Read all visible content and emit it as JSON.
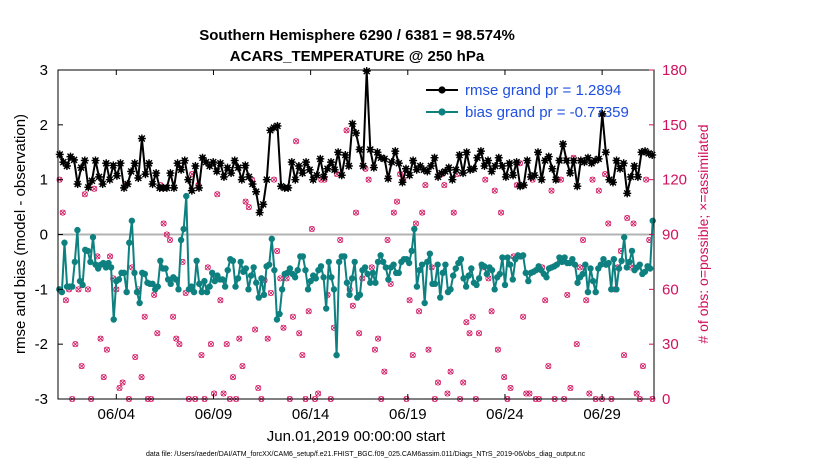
{
  "chart_data": {
    "type": "line",
    "title": "Southern Hemisphere 6290 / 6381 = 98.574%",
    "subtitle": "ACARS_TEMPERATURE @ 250 hPa",
    "xlabel": "Jun.01,2019 00:00:00 start",
    "ylabel": "rmse and bias (model - observation)",
    "ylabel_right": "# of obs: o=possible; ×=assimilated",
    "xlim": [
      0,
      30.67
    ],
    "ylim": [
      -3,
      3
    ],
    "ylim_right": [
      0,
      180
    ],
    "xticks": [
      3,
      8,
      13,
      18,
      23,
      28
    ],
    "xtick_labels": [
      "06/04",
      "06/09",
      "06/14",
      "06/19",
      "06/24",
      "06/29"
    ],
    "yticks": [
      -3,
      -2,
      -1,
      0,
      1,
      2,
      3
    ],
    "yticks_right": [
      0,
      30,
      60,
      90,
      120,
      150,
      180
    ],
    "zero_line": 0,
    "footer": "data file: /Users/raeder/DAI/ATM_forcXX/CAM6_setup/f.e21.FHIST_BGC.f09_025.CAM6assim.011/Diags_NTrS_2019-06/obs_diag_output.nc",
    "legend_location": "top-right",
    "series": [
      {
        "name": "rmse grand pr = 1.2894",
        "color": "#000000",
        "marker": "star",
        "values": [
          1.46,
          1.32,
          1.25,
          1.42,
          1.36,
          0.92,
          1.22,
          1.35,
          0.86,
          0.98,
          1.35,
          1.05,
          0.92,
          1.3,
          1.0,
          1.26,
          1.07,
          1.3,
          0.85,
          0.92,
          1.15,
          1.3,
          1.03,
          1.75,
          1.1,
          1.3,
          0.92,
          1.12,
          0.85,
          0.85,
          0.85,
          1.12,
          0.85,
          1.3,
          1.18,
          1.35,
          1.0,
          0.8,
          1.25,
          0.85,
          1.4,
          1.32,
          1.25,
          1.32,
          1.15,
          1.3,
          1.05,
          1.22,
          1.12,
          1.35,
          1.22,
          1.0,
          1.26,
          1.05,
          0.92,
          0.78,
          0.4,
          0.55,
          1.0,
          1.9,
          1.95,
          1.98,
          0.88,
          0.85,
          0.85,
          1.32,
          1.0,
          1.25,
          1.12,
          1.32,
          1.18,
          1.0,
          1.08,
          1.38,
          1.05,
          1.2,
          1.32,
          1.18,
          1.5,
          1.08,
          1.45,
          1.25,
          2.02,
          1.85,
          1.55,
          1.25,
          2.98,
          1.55,
          1.22,
          1.5,
          1.4,
          1.38,
          1.02,
          1.32,
          1.52,
          1.3,
          0.95,
          1.2,
          1.08,
          1.35,
          1.18,
          1.25,
          1.18,
          1.15,
          1.25,
          1.4,
          1.05,
          1.12,
          1.15,
          1.22,
          1.0,
          1.18,
          1.45,
          1.12,
          1.5,
          1.18,
          1.2,
          1.4,
          1.52,
          1.25,
          1.35,
          1.15,
          1.25,
          1.4,
          1.25,
          1.05,
          1.3,
          1.08,
          1.32,
          0.88,
          0.9,
          1.35,
          1.05,
          1.08,
          1.5,
          1.0,
          1.35,
          1.42,
          1.2,
          1.0,
          1.35,
          1.65,
          1.35,
          1.12,
          1.35,
          0.88,
          1.35,
          1.32,
          1.4,
          1.3,
          1.35,
          1.38,
          2.2,
          1.5,
          1.0,
          0.95,
          1.35,
          1.2,
          1.3,
          0.75,
          1.05,
          1.25,
          1.05,
          1.5,
          1.52,
          1.48,
          1.45
        ]
      },
      {
        "name": "bias grand pr = -0.77359",
        "color": "#0e8080",
        "marker": "circle",
        "values": [
          -1.0,
          -1.05,
          -0.15,
          -0.95,
          -0.95,
          -0.95,
          -0.5,
          0.08,
          -0.85,
          -0.92,
          -0.28,
          -0.3,
          -0.5,
          -0.05,
          -0.55,
          -0.62,
          -0.55,
          -0.52,
          -0.6,
          -0.52,
          -0.6,
          -1.55,
          -0.85,
          -0.82,
          -0.7,
          -0.7,
          -1.05,
          -0.15,
          0.25,
          -0.7,
          -1.05,
          -1.25,
          -0.7,
          -0.72,
          -0.88,
          -0.9,
          -0.9,
          -1.0,
          -0.95,
          -0.48,
          -0.62,
          -0.62,
          -0.82,
          -0.9,
          -0.78,
          -0.82,
          -1.0,
          -0.1,
          0.1,
          0.7,
          -1.0,
          -0.95,
          -1.05,
          -0.48,
          -0.9,
          -1.05,
          -0.85,
          -1.05,
          -0.95,
          -0.7,
          -0.85,
          -0.75,
          -0.82,
          -0.82,
          -0.95,
          -0.65,
          -0.45,
          -0.48,
          -0.95,
          -0.8,
          -0.5,
          -0.68,
          -0.62,
          -1.0,
          -0.75,
          -0.6,
          -0.88,
          -1.15,
          -0.8,
          -1.1,
          -0.58,
          -0.55,
          -0.08,
          -0.65,
          -1.55,
          -1.45,
          -1.0,
          -0.72,
          -0.7,
          -0.62,
          -0.72,
          -0.78,
          -0.65,
          -0.4,
          -0.4,
          -0.65,
          -1.0,
          -0.85,
          -0.75,
          -0.8,
          -0.65,
          -0.58,
          -0.78,
          -1.35,
          -0.5,
          -0.78,
          -1.0,
          -2.2,
          -0.5,
          -0.4,
          -0.4,
          -0.88,
          -1.1,
          -0.8,
          -0.5,
          -1.15,
          -1.1,
          -0.65,
          -0.6,
          -0.72,
          -0.88,
          -0.7,
          -0.88,
          -0.5,
          -0.38,
          -0.5,
          -0.6,
          -0.82,
          -0.6,
          -0.55,
          -0.7,
          -0.7,
          -0.5,
          -0.45,
          -0.45,
          -0.52,
          -0.3,
          0.1,
          -0.95,
          -0.65,
          -0.55,
          -1.25,
          -0.5,
          -0.35,
          -0.9,
          -0.9,
          -0.55,
          -1.15,
          -0.7,
          -0.55,
          -1.05,
          -1.0,
          -0.75,
          -0.62,
          -0.52,
          -0.45,
          -0.8,
          -0.95,
          -0.75,
          -0.62,
          -0.88,
          -0.92,
          -0.8,
          -0.55,
          -0.58,
          -0.72,
          -0.6,
          -0.65,
          -1.0,
          -0.78,
          -0.72,
          -0.42,
          -0.92,
          -0.42,
          -0.55,
          -0.82,
          -0.45,
          -0.38,
          -0.4,
          -0.38,
          -0.7,
          -0.85,
          -0.7,
          -0.68,
          -0.65,
          -0.58,
          -0.65,
          -0.72,
          -0.78,
          -0.62,
          -0.6,
          -0.58,
          -0.55,
          -0.42,
          -0.5,
          -0.42,
          -0.52,
          -0.52,
          -0.45,
          -0.55,
          -0.88,
          -0.78,
          -0.72,
          -0.55,
          -1.05,
          -0.62,
          -0.85,
          -1.05,
          -0.62,
          -0.55,
          -0.45,
          -0.55,
          -0.52,
          -1.0,
          -0.45,
          -1.0,
          -0.62,
          -0.48,
          -0.05,
          -0.6,
          -0.5,
          -0.3,
          -0.65,
          -0.6,
          -0.55,
          -0.72,
          -0.68,
          -0.58,
          -0.62,
          0.25
        ]
      }
    ],
    "obs_counts": {
      "color": "#d0115e",
      "possible": [
        120,
        102,
        54,
        60,
        0,
        30,
        60,
        18,
        112,
        60,
        0,
        115,
        78,
        33,
        12,
        27,
        78,
        66,
        60,
        6,
        9,
        117,
        0,
        72,
        23,
        60,
        12,
        45,
        0,
        0,
        57,
        36,
        117,
        96,
        90,
        87,
        45,
        33,
        30,
        75,
        58,
        0,
        123,
        0,
        117,
        24,
        0,
        72,
        30,
        3,
        112,
        54,
        3,
        30,
        0,
        12,
        0,
        33,
        18,
        108,
        105,
        120,
        38,
        6,
        0,
        65,
        33,
        58,
        120,
        81,
        66,
        39,
        66,
        0,
        45,
        141,
        36,
        24,
        0,
        48,
        93,
        0,
        3,
        120,
        120,
        57,
        0,
        39,
        123,
        87,
        78,
        147,
        60,
        51,
        102,
        36,
        66,
        126,
        120,
        72,
        27,
        33,
        0,
        15,
        87,
        63,
        102,
        108,
        123,
        120,
        0,
        54,
        24,
        96,
        48,
        102,
        117,
        27,
        72,
        0,
        9,
        123,
        117,
        3,
        15,
        102,
        123,
        0,
        9,
        42,
        36,
        45,
        0,
        36,
        72,
        120,
        66,
        48,
        114,
        27,
        102,
        12,
        0,
        6,
        78,
        117,
        129,
        45,
        3,
        3,
        120,
        0,
        0,
        72,
        54,
        18,
        114,
        0,
        120,
        120,
        0,
        57,
        6,
        132,
        30,
        72,
        87,
        54,
        3,
        120,
        0,
        114,
        0,
        123,
        96,
        0,
        60,
        72,
        81,
        24,
        99,
        72,
        96,
        3,
        0,
        18,
        120,
        87,
        0
      ],
      "assimilated": [
        120,
        102,
        54,
        60,
        0,
        30,
        60,
        18,
        112,
        60,
        0,
        115,
        78,
        33,
        12,
        27,
        78,
        66,
        60,
        6,
        9,
        117,
        0,
        72,
        23,
        60,
        12,
        45,
        0,
        0,
        57,
        36,
        117,
        96,
        90,
        87,
        45,
        33,
        30,
        75,
        58,
        0,
        123,
        0,
        117,
        24,
        0,
        72,
        30,
        3,
        112,
        54,
        3,
        30,
        0,
        12,
        0,
        33,
        18,
        108,
        105,
        120,
        38,
        6,
        0,
        65,
        33,
        58,
        120,
        81,
        66,
        39,
        66,
        0,
        45,
        141,
        36,
        24,
        0,
        48,
        93,
        0,
        3,
        120,
        120,
        57,
        0,
        39,
        123,
        87,
        78,
        147,
        60,
        51,
        102,
        36,
        66,
        126,
        120,
        72,
        27,
        33,
        0,
        15,
        87,
        63,
        102,
        108,
        123,
        120,
        0,
        54,
        24,
        96,
        48,
        102,
        117,
        27,
        72,
        0,
        9,
        123,
        117,
        3,
        15,
        102,
        123,
        0,
        9,
        42,
        36,
        45,
        0,
        36,
        72,
        120,
        66,
        48,
        114,
        27,
        102,
        12,
        0,
        6,
        78,
        117,
        129,
        45,
        3,
        3,
        120,
        0,
        0,
        72,
        54,
        18,
        114,
        0,
        120,
        120,
        0,
        57,
        6,
        132,
        30,
        72,
        87,
        54,
        3,
        120,
        0,
        114,
        0,
        123,
        96,
        0,
        60,
        72,
        81,
        24,
        99,
        72,
        96,
        3,
        0,
        18,
        120,
        87,
        0
      ]
    }
  }
}
